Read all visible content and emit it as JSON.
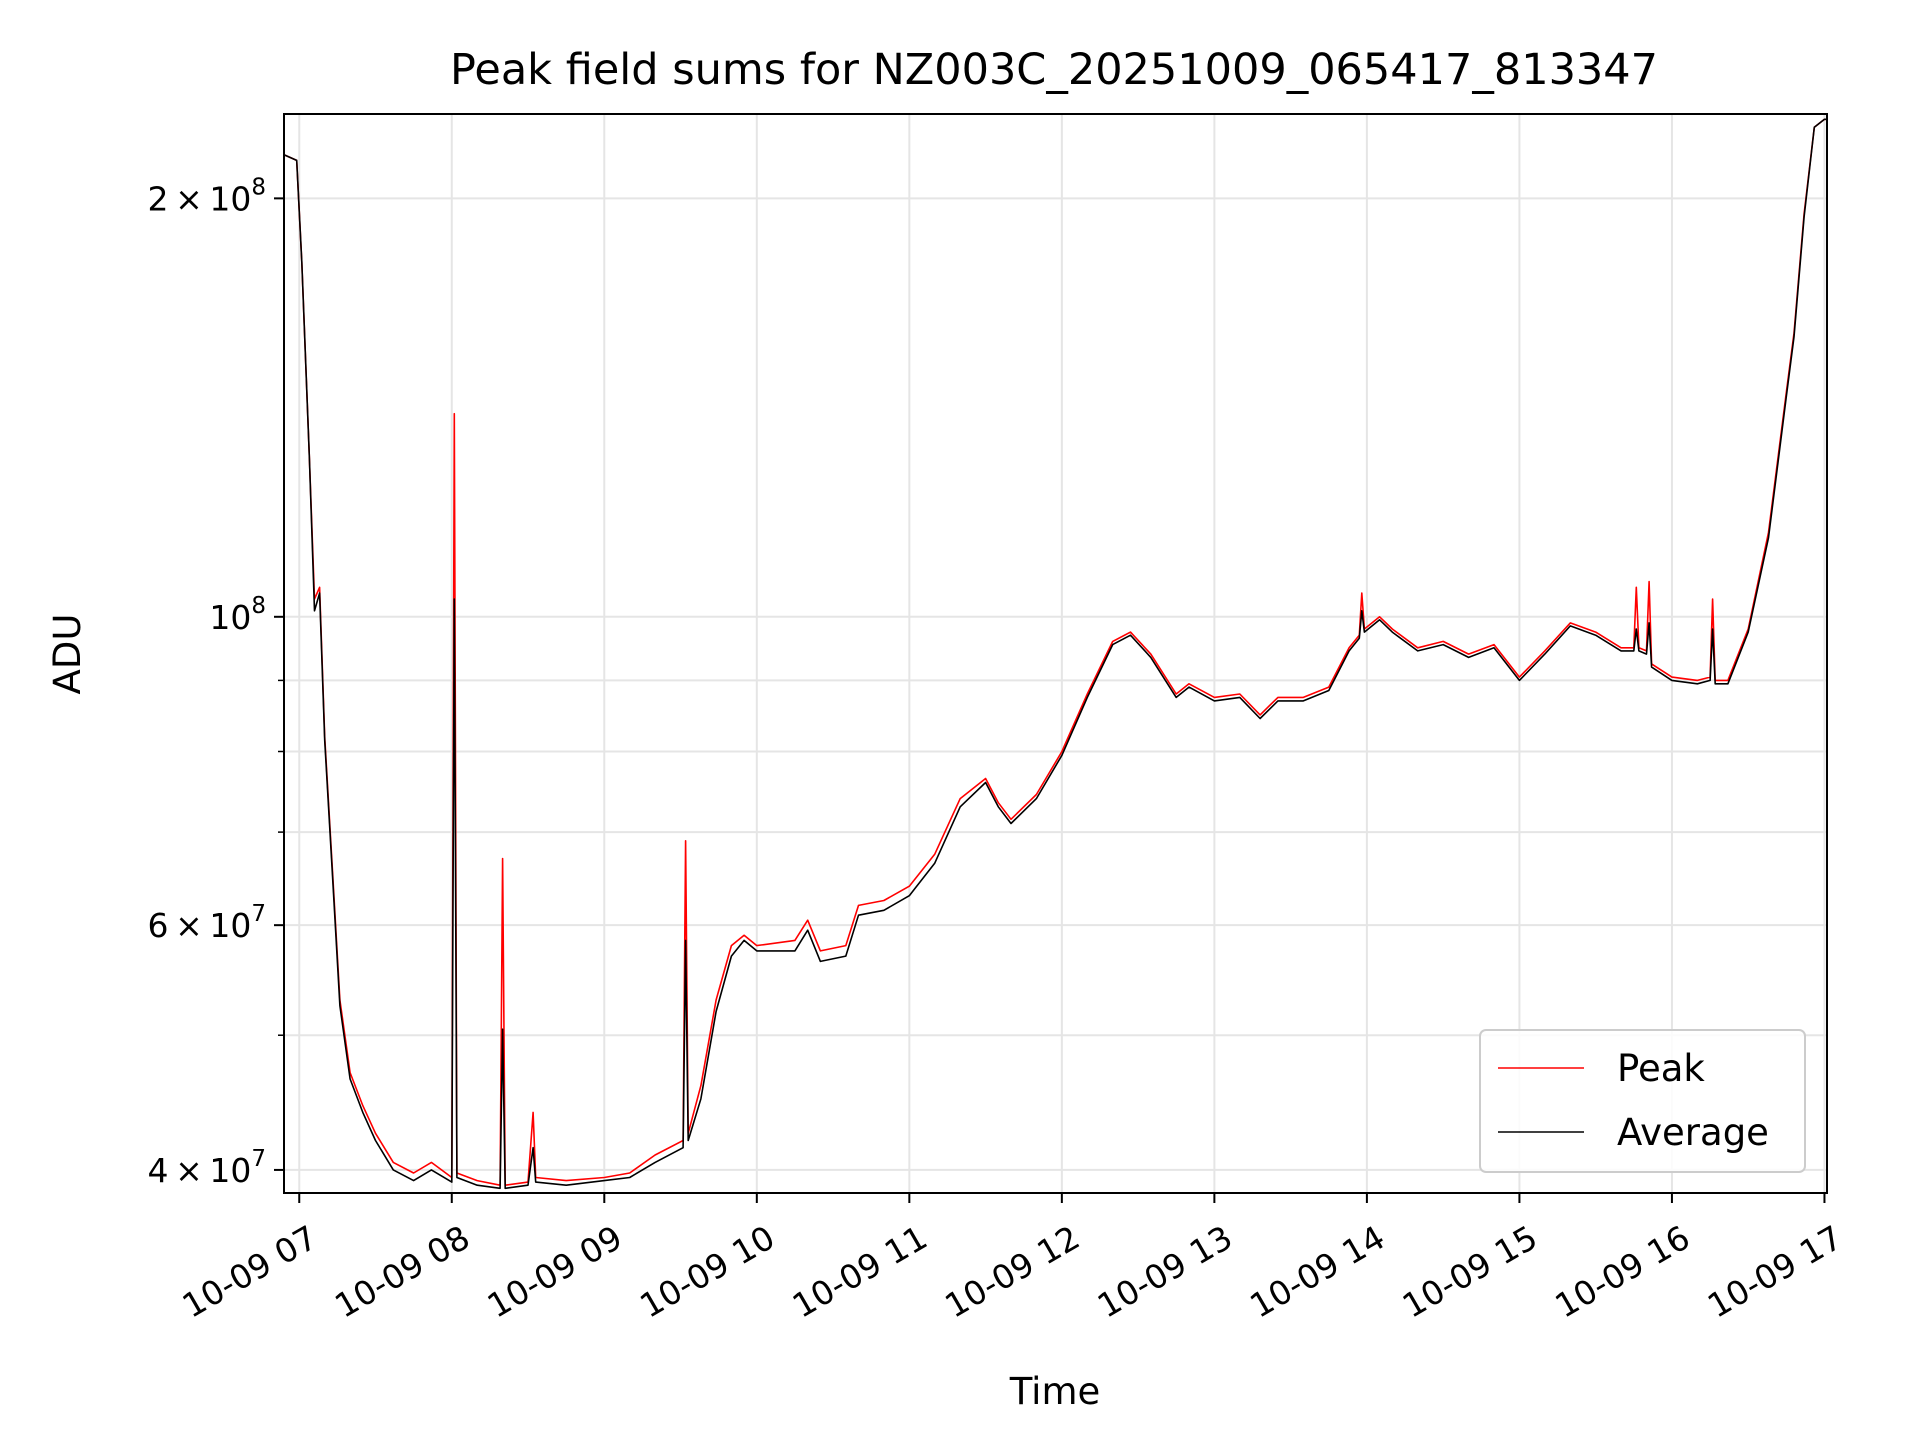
{
  "chart_data": {
    "type": "line",
    "title": "Peak field sums for NZ003C_20251009_065417_813347",
    "xlabel": "Time",
    "ylabel": "ADU",
    "x_scale": "time",
    "y_scale": "log",
    "xlim": [
      "2025-10-09 06:54",
      "2025-10-09 17:01"
    ],
    "ylim": [
      38500000,
      230000000
    ],
    "x_ticks": [
      {
        "t": "2025-10-09 07:00",
        "label": "10-09 07"
      },
      {
        "t": "2025-10-09 08:00",
        "label": "10-09 08"
      },
      {
        "t": "2025-10-09 09:00",
        "label": "10-09 09"
      },
      {
        "t": "2025-10-09 10:00",
        "label": "10-09 10"
      },
      {
        "t": "2025-10-09 11:00",
        "label": "10-09 11"
      },
      {
        "t": "2025-10-09 12:00",
        "label": "10-09 12"
      },
      {
        "t": "2025-10-09 13:00",
        "label": "10-09 13"
      },
      {
        "t": "2025-10-09 14:00",
        "label": "10-09 14"
      },
      {
        "t": "2025-10-09 15:00",
        "label": "10-09 15"
      },
      {
        "t": "2025-10-09 16:00",
        "label": "10-09 16"
      },
      {
        "t": "2025-10-09 17:00",
        "label": "10-09 17"
      }
    ],
    "y_major_ticks": [
      {
        "v": 40000000,
        "base": "4 × 10",
        "exp": "7"
      },
      {
        "v": 60000000,
        "base": "6 × 10",
        "exp": "7"
      },
      {
        "v": 100000000,
        "base": "10",
        "exp": "8"
      },
      {
        "v": 200000000,
        "base": "2 × 10",
        "exp": "8"
      }
    ],
    "y_minor_gridlines": [
      50000000,
      70000000,
      80000000,
      90000000
    ],
    "grid": true,
    "legend_position": "lower right",
    "series": [
      {
        "name": "Peak",
        "color": "#ff0000",
        "points": [
          [
            "2025-10-09 06:54",
            215000000
          ],
          [
            "2025-10-09 06:59",
            213000000
          ],
          [
            "2025-10-09 07:01",
            180000000
          ],
          [
            "2025-10-09 07:04",
            130000000
          ],
          [
            "2025-10-09 07:06",
            103000000
          ],
          [
            "2025-10-09 07:08",
            105000000
          ],
          [
            "2025-10-09 07:10",
            82000000
          ],
          [
            "2025-10-09 07:13",
            66000000
          ],
          [
            "2025-10-09 07:16",
            53000000
          ],
          [
            "2025-10-09 07:20",
            47000000
          ],
          [
            "2025-10-09 07:25",
            44500000
          ],
          [
            "2025-10-09 07:30",
            42500000
          ],
          [
            "2025-10-09 07:37",
            40500000
          ],
          [
            "2025-10-09 07:45",
            39800000
          ],
          [
            "2025-10-09 07:52",
            40500000
          ],
          [
            "2025-10-09 08:00",
            39500000
          ],
          [
            "2025-10-09 08:01",
            140000000
          ],
          [
            "2025-10-09 08:02",
            39800000
          ],
          [
            "2025-10-09 08:10",
            39300000
          ],
          [
            "2025-10-09 08:19",
            39000000
          ],
          [
            "2025-10-09 08:20",
            67000000
          ],
          [
            "2025-10-09 08:21",
            39000000
          ],
          [
            "2025-10-09 08:30",
            39200000
          ],
          [
            "2025-10-09 08:32",
            44000000
          ],
          [
            "2025-10-09 08:33",
            39500000
          ],
          [
            "2025-10-09 08:45",
            39300000
          ],
          [
            "2025-10-09 09:00",
            39500000
          ],
          [
            "2025-10-09 09:10",
            39800000
          ],
          [
            "2025-10-09 09:20",
            41000000
          ],
          [
            "2025-10-09 09:31",
            42000000
          ],
          [
            "2025-10-09 09:32",
            69000000
          ],
          [
            "2025-10-09 09:33",
            42500000
          ],
          [
            "2025-10-09 09:38",
            46000000
          ],
          [
            "2025-10-09 09:44",
            53000000
          ],
          [
            "2025-10-09 09:50",
            58000000
          ],
          [
            "2025-10-09 09:55",
            59000000
          ],
          [
            "2025-10-09 10:00",
            58000000
          ],
          [
            "2025-10-09 10:15",
            58500000
          ],
          [
            "2025-10-09 10:20",
            60500000
          ],
          [
            "2025-10-09 10:25",
            57500000
          ],
          [
            "2025-10-09 10:35",
            58000000
          ],
          [
            "2025-10-09 10:40",
            62000000
          ],
          [
            "2025-10-09 10:50",
            62500000
          ],
          [
            "2025-10-09 11:00",
            64000000
          ],
          [
            "2025-10-09 11:10",
            67500000
          ],
          [
            "2025-10-09 11:20",
            74000000
          ],
          [
            "2025-10-09 11:30",
            76500000
          ],
          [
            "2025-10-09 11:35",
            73500000
          ],
          [
            "2025-10-09 11:40",
            71500000
          ],
          [
            "2025-10-09 11:50",
            74500000
          ],
          [
            "2025-10-09 12:00",
            80000000
          ],
          [
            "2025-10-09 12:10",
            88000000
          ],
          [
            "2025-10-09 12:20",
            96000000
          ],
          [
            "2025-10-09 12:27",
            97500000
          ],
          [
            "2025-10-09 12:35",
            94000000
          ],
          [
            "2025-10-09 12:45",
            88000000
          ],
          [
            "2025-10-09 12:50",
            89500000
          ],
          [
            "2025-10-09 13:00",
            87500000
          ],
          [
            "2025-10-09 13:10",
            88000000
          ],
          [
            "2025-10-09 13:18",
            85000000
          ],
          [
            "2025-10-09 13:25",
            87500000
          ],
          [
            "2025-10-09 13:35",
            87500000
          ],
          [
            "2025-10-09 13:45",
            89000000
          ],
          [
            "2025-10-09 13:53",
            95000000
          ],
          [
            "2025-10-09 13:57",
            97000000
          ],
          [
            "2025-10-09 13:58",
            104000000
          ],
          [
            "2025-10-09 13:59",
            98000000
          ],
          [
            "2025-10-09 14:05",
            100000000
          ],
          [
            "2025-10-09 14:10",
            98000000
          ],
          [
            "2025-10-09 14:20",
            95000000
          ],
          [
            "2025-10-09 14:30",
            96000000
          ],
          [
            "2025-10-09 14:40",
            94000000
          ],
          [
            "2025-10-09 14:50",
            95500000
          ],
          [
            "2025-10-09 15:00",
            90500000
          ],
          [
            "2025-10-09 15:10",
            94500000
          ],
          [
            "2025-10-09 15:20",
            99000000
          ],
          [
            "2025-10-09 15:30",
            97500000
          ],
          [
            "2025-10-09 15:40",
            95000000
          ],
          [
            "2025-10-09 15:45",
            95000000
          ],
          [
            "2025-10-09 15:46",
            105000000
          ],
          [
            "2025-10-09 15:47",
            95000000
          ],
          [
            "2025-10-09 15:50",
            94500000
          ],
          [
            "2025-10-09 15:51",
            106000000
          ],
          [
            "2025-10-09 15:52",
            92500000
          ],
          [
            "2025-10-09 16:00",
            90500000
          ],
          [
            "2025-10-09 16:10",
            90000000
          ],
          [
            "2025-10-09 16:15",
            90500000
          ],
          [
            "2025-10-09 16:16",
            103000000
          ],
          [
            "2025-10-09 16:17",
            90000000
          ],
          [
            "2025-10-09 16:22",
            90000000
          ],
          [
            "2025-10-09 16:30",
            98000000
          ],
          [
            "2025-10-09 16:38",
            115000000
          ],
          [
            "2025-10-09 16:45",
            145000000
          ],
          [
            "2025-10-09 16:48",
            160000000
          ],
          [
            "2025-10-09 16:52",
            195000000
          ],
          [
            "2025-10-09 16:56",
            225000000
          ],
          [
            "2025-10-09 17:00",
            228000000
          ],
          [
            "2025-10-09 17:01",
            228000000
          ]
        ]
      },
      {
        "name": "Average",
        "color": "#000000",
        "points": [
          [
            "2025-10-09 06:54",
            215000000
          ],
          [
            "2025-10-09 06:59",
            213000000
          ],
          [
            "2025-10-09 07:01",
            180000000
          ],
          [
            "2025-10-09 07:04",
            130000000
          ],
          [
            "2025-10-09 07:06",
            101000000
          ],
          [
            "2025-10-09 07:08",
            104000000
          ],
          [
            "2025-10-09 07:10",
            81500000
          ],
          [
            "2025-10-09 07:13",
            65500000
          ],
          [
            "2025-10-09 07:16",
            52500000
          ],
          [
            "2025-10-09 07:20",
            46500000
          ],
          [
            "2025-10-09 07:25",
            44000000
          ],
          [
            "2025-10-09 07:30",
            42000000
          ],
          [
            "2025-10-09 07:37",
            40000000
          ],
          [
            "2025-10-09 07:45",
            39300000
          ],
          [
            "2025-10-09 07:52",
            40000000
          ],
          [
            "2025-10-09 08:00",
            39200000
          ],
          [
            "2025-10-09 08:01",
            103000000
          ],
          [
            "2025-10-09 08:02",
            39500000
          ],
          [
            "2025-10-09 08:10",
            39000000
          ],
          [
            "2025-10-09 08:19",
            38800000
          ],
          [
            "2025-10-09 08:20",
            50500000
          ],
          [
            "2025-10-09 08:21",
            38800000
          ],
          [
            "2025-10-09 08:30",
            39000000
          ],
          [
            "2025-10-09 08:32",
            41500000
          ],
          [
            "2025-10-09 08:33",
            39200000
          ],
          [
            "2025-10-09 08:45",
            39000000
          ],
          [
            "2025-10-09 09:00",
            39300000
          ],
          [
            "2025-10-09 09:10",
            39500000
          ],
          [
            "2025-10-09 09:20",
            40500000
          ],
          [
            "2025-10-09 09:31",
            41500000
          ],
          [
            "2025-10-09 09:32",
            58500000
          ],
          [
            "2025-10-09 09:33",
            42000000
          ],
          [
            "2025-10-09 09:38",
            45000000
          ],
          [
            "2025-10-09 09:44",
            52000000
          ],
          [
            "2025-10-09 09:50",
            57000000
          ],
          [
            "2025-10-09 09:55",
            58500000
          ],
          [
            "2025-10-09 10:00",
            57500000
          ],
          [
            "2025-10-09 10:15",
            57500000
          ],
          [
            "2025-10-09 10:20",
            59500000
          ],
          [
            "2025-10-09 10:25",
            56500000
          ],
          [
            "2025-10-09 10:35",
            57000000
          ],
          [
            "2025-10-09 10:40",
            61000000
          ],
          [
            "2025-10-09 10:50",
            61500000
          ],
          [
            "2025-10-09 11:00",
            63000000
          ],
          [
            "2025-10-09 11:10",
            66500000
          ],
          [
            "2025-10-09 11:20",
            73000000
          ],
          [
            "2025-10-09 11:30",
            76000000
          ],
          [
            "2025-10-09 11:35",
            73000000
          ],
          [
            "2025-10-09 11:40",
            71000000
          ],
          [
            "2025-10-09 11:50",
            74000000
          ],
          [
            "2025-10-09 12:00",
            79500000
          ],
          [
            "2025-10-09 12:10",
            87500000
          ],
          [
            "2025-10-09 12:20",
            95500000
          ],
          [
            "2025-10-09 12:27",
            97000000
          ],
          [
            "2025-10-09 12:35",
            93500000
          ],
          [
            "2025-10-09 12:45",
            87500000
          ],
          [
            "2025-10-09 12:50",
            89000000
          ],
          [
            "2025-10-09 13:00",
            87000000
          ],
          [
            "2025-10-09 13:10",
            87500000
          ],
          [
            "2025-10-09 13:18",
            84500000
          ],
          [
            "2025-10-09 13:25",
            87000000
          ],
          [
            "2025-10-09 13:35",
            87000000
          ],
          [
            "2025-10-09 13:45",
            88500000
          ],
          [
            "2025-10-09 13:53",
            94500000
          ],
          [
            "2025-10-09 13:57",
            96500000
          ],
          [
            "2025-10-09 13:58",
            101000000
          ],
          [
            "2025-10-09 13:59",
            97500000
          ],
          [
            "2025-10-09 14:05",
            99500000
          ],
          [
            "2025-10-09 14:10",
            97500000
          ],
          [
            "2025-10-09 14:20",
            94500000
          ],
          [
            "2025-10-09 14:30",
            95500000
          ],
          [
            "2025-10-09 14:40",
            93500000
          ],
          [
            "2025-10-09 14:50",
            95000000
          ],
          [
            "2025-10-09 15:00",
            90000000
          ],
          [
            "2025-10-09 15:10",
            94000000
          ],
          [
            "2025-10-09 15:20",
            98500000
          ],
          [
            "2025-10-09 15:30",
            97000000
          ],
          [
            "2025-10-09 15:40",
            94500000
          ],
          [
            "2025-10-09 15:45",
            94500000
          ],
          [
            "2025-10-09 15:46",
            98000000
          ],
          [
            "2025-10-09 15:47",
            94500000
          ],
          [
            "2025-10-09 15:50",
            94000000
          ],
          [
            "2025-10-09 15:51",
            99000000
          ],
          [
            "2025-10-09 15:52",
            92000000
          ],
          [
            "2025-10-09 16:00",
            90000000
          ],
          [
            "2025-10-09 16:10",
            89500000
          ],
          [
            "2025-10-09 16:15",
            90000000
          ],
          [
            "2025-10-09 16:16",
            98000000
          ],
          [
            "2025-10-09 16:17",
            89500000
          ],
          [
            "2025-10-09 16:22",
            89500000
          ],
          [
            "2025-10-09 16:30",
            97500000
          ],
          [
            "2025-10-09 16:38",
            114000000
          ],
          [
            "2025-10-09 16:45",
            144000000
          ],
          [
            "2025-10-09 16:48",
            159000000
          ],
          [
            "2025-10-09 16:52",
            194000000
          ],
          [
            "2025-10-09 16:56",
            225000000
          ],
          [
            "2025-10-09 17:00",
            228000000
          ],
          [
            "2025-10-09 17:01",
            228000000
          ]
        ]
      }
    ]
  }
}
